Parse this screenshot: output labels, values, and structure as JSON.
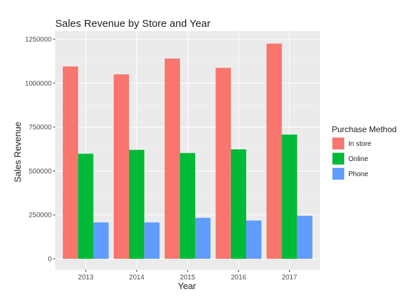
{
  "chart_data": {
    "type": "bar",
    "title": "Sales Revenue by Store and Year",
    "xlabel": "Year",
    "ylabel": "Sales Revenue",
    "categories": [
      "2013",
      "2014",
      "2015",
      "2016",
      "2017"
    ],
    "series": [
      {
        "name": "In store",
        "color": "#F8766D",
        "values": [
          1095000,
          1050000,
          1140000,
          1087000,
          1225000
        ]
      },
      {
        "name": "Online",
        "color": "#00BA38",
        "values": [
          598000,
          620000,
          602000,
          623000,
          707000
        ]
      },
      {
        "name": "Phone",
        "color": "#619CFF",
        "values": [
          207000,
          207000,
          233000,
          218000,
          245000
        ]
      }
    ],
    "ylim": [
      0,
      1250000
    ],
    "yticks": [
      0,
      250000,
      500000,
      750000,
      1000000,
      1250000
    ],
    "ytick_labels": [
      "0",
      "250000",
      "500000",
      "750000",
      "1000000",
      "1250000"
    ],
    "grid": true,
    "panel_color": "#EBEBEB",
    "legend": {
      "title": "Purchase Method",
      "position": "right"
    }
  }
}
